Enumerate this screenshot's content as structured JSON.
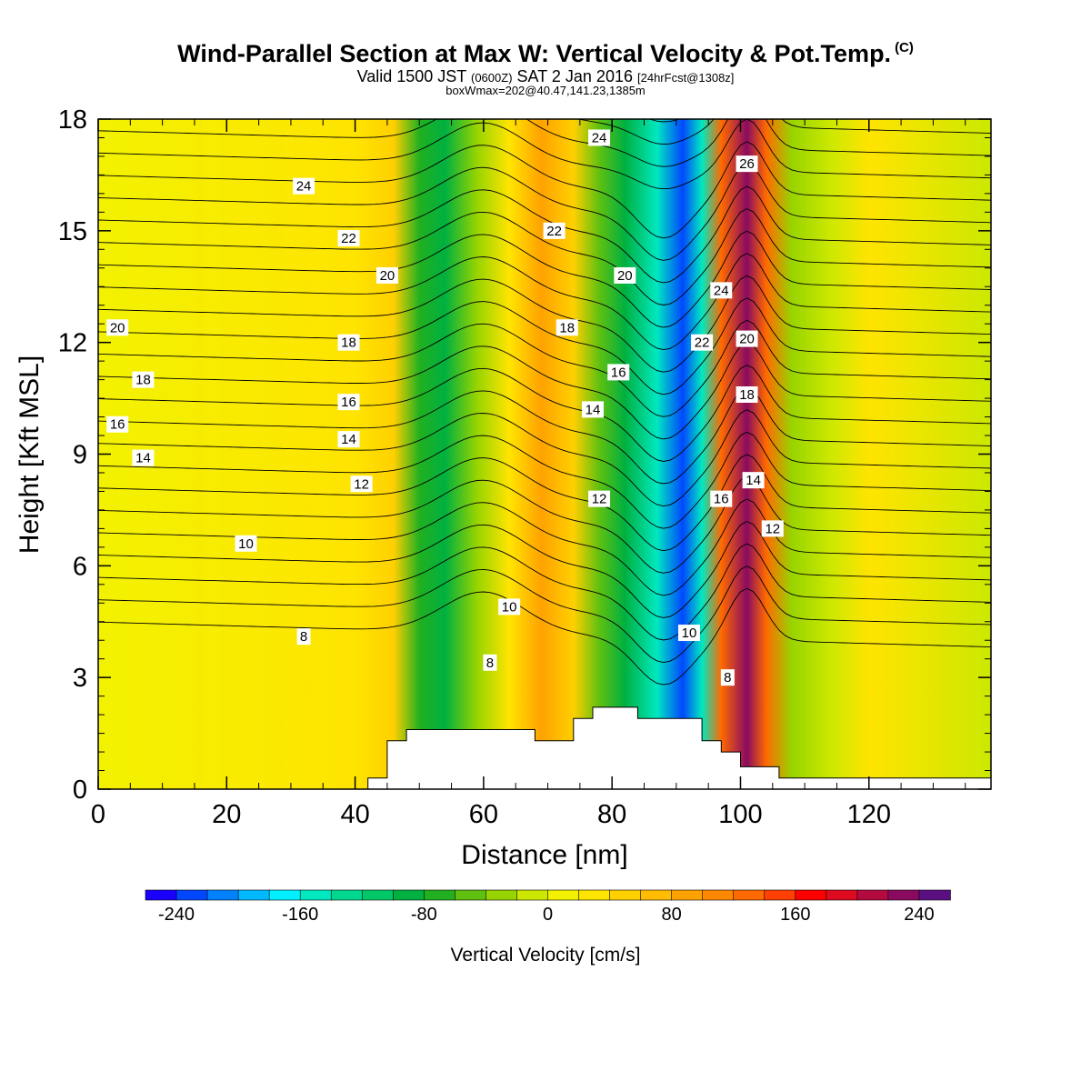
{
  "header": {
    "title": "Wind-Parallel Section at Max W: Vertical Velocity & Pot.Temp.",
    "title_mark": "(C)",
    "valid_prefix": "Valid 1500 JST",
    "valid_utc": "(0600Z)",
    "valid_date": "SAT 2 Jan 2016",
    "forecast": "[24hrFcst@1308z]",
    "box_info": "boxWmax=202@40.47,141.23,1385m"
  },
  "chart_data": {
    "type": "heatmap",
    "title": "Wind-Parallel Section at Max W: Vertical Velocity & Pot.Temp.",
    "xlabel": "Distance [nm]",
    "ylabel": "Height [Kft MSL]",
    "xlim": [
      0,
      139
    ],
    "ylim": [
      0,
      18
    ],
    "x_ticks": [
      0,
      20,
      40,
      60,
      80,
      100,
      120
    ],
    "y_ticks": [
      0,
      3,
      6,
      9,
      12,
      15,
      18
    ],
    "grid": false,
    "shaded_field": {
      "name": "Vertical Velocity [cm/s]",
      "levels": [
        -260,
        -240,
        -220,
        -200,
        -180,
        -160,
        -140,
        -120,
        -100,
        -80,
        -60,
        -40,
        -20,
        0,
        20,
        40,
        60,
        80,
        100,
        120,
        140,
        160,
        180,
        200,
        220,
        240,
        260
      ],
      "colors": [
        "#1a00ff",
        "#0047ff",
        "#0082ff",
        "#00b8ff",
        "#00f0ff",
        "#00e8c0",
        "#00d890",
        "#00c868",
        "#00b040",
        "#22b020",
        "#60c010",
        "#98d400",
        "#cce800",
        "#f2f200",
        "#ffe400",
        "#ffd000",
        "#ffbc00",
        "#ffa200",
        "#ff8800",
        "#ff6a00",
        "#ff4000",
        "#ff0000",
        "#dd0a20",
        "#b30a40",
        "#8a0a60",
        "#5a1080"
      ],
      "colorbar_tick_labels": [
        "-240",
        "-160",
        "-80",
        "0",
        "80",
        "160",
        "240"
      ],
      "colorbar_ticks": [
        -240,
        -160,
        -80,
        0,
        80,
        160,
        240
      ],
      "bands": [
        {
          "x": 0,
          "value": 0
        },
        {
          "x": 40,
          "value": 30
        },
        {
          "x": 46,
          "value": 40
        },
        {
          "x": 50,
          "value": -80
        },
        {
          "x": 54,
          "value": -100
        },
        {
          "x": 59,
          "value": -40
        },
        {
          "x": 64,
          "value": 20
        },
        {
          "x": 69,
          "value": 90
        },
        {
          "x": 74,
          "value": 40
        },
        {
          "x": 78,
          "value": -60
        },
        {
          "x": 82,
          "value": -90
        },
        {
          "x": 87,
          "value": -160
        },
        {
          "x": 91,
          "value": -240
        },
        {
          "x": 94,
          "value": -150
        },
        {
          "x": 97,
          "value": 130
        },
        {
          "x": 101,
          "value": 230
        },
        {
          "x": 104,
          "value": 130
        },
        {
          "x": 108,
          "value": -40
        },
        {
          "x": 114,
          "value": -20
        },
        {
          "x": 120,
          "value": 20
        },
        {
          "x": 139,
          "value": -10
        }
      ]
    },
    "contour_field": {
      "name": "Pot.Temp.",
      "units": "C",
      "levels": [
        8,
        10,
        12,
        14,
        16,
        18,
        20,
        22,
        24,
        26
      ],
      "labels": [
        {
          "text": "24",
          "x": 32,
          "y": 16.2
        },
        {
          "text": "22",
          "x": 39,
          "y": 14.8
        },
        {
          "text": "20",
          "x": 45,
          "y": 13.8
        },
        {
          "text": "20",
          "x": 3,
          "y": 12.4
        },
        {
          "text": "18",
          "x": 39,
          "y": 12.0
        },
        {
          "text": "18",
          "x": 7,
          "y": 11.0
        },
        {
          "text": "16",
          "x": 39,
          "y": 10.4
        },
        {
          "text": "16",
          "x": 3,
          "y": 9.8
        },
        {
          "text": "14",
          "x": 39,
          "y": 9.4
        },
        {
          "text": "14",
          "x": 7,
          "y": 8.9
        },
        {
          "text": "12",
          "x": 41,
          "y": 8.2
        },
        {
          "text": "10",
          "x": 23,
          "y": 6.6
        },
        {
          "text": "8",
          "x": 32,
          "y": 4.1
        },
        {
          "text": "24",
          "x": 78,
          "y": 17.5
        },
        {
          "text": "22",
          "x": 71,
          "y": 15.0
        },
        {
          "text": "20",
          "x": 82,
          "y": 13.8
        },
        {
          "text": "18",
          "x": 73,
          "y": 12.4
        },
        {
          "text": "16",
          "x": 81,
          "y": 11.2
        },
        {
          "text": "14",
          "x": 77,
          "y": 10.2
        },
        {
          "text": "12",
          "x": 78,
          "y": 7.8
        },
        {
          "text": "10",
          "x": 64,
          "y": 4.9
        },
        {
          "text": "8",
          "x": 61,
          "y": 3.4
        },
        {
          "text": "26",
          "x": 101,
          "y": 16.8
        },
        {
          "text": "24",
          "x": 97,
          "y": 13.4
        },
        {
          "text": "22",
          "x": 94,
          "y": 12.0
        },
        {
          "text": "20",
          "x": 101,
          "y": 12.1
        },
        {
          "text": "18",
          "x": 101,
          "y": 10.6
        },
        {
          "text": "16",
          "x": 97,
          "y": 7.8
        },
        {
          "text": "14",
          "x": 102,
          "y": 8.3
        },
        {
          "text": "12",
          "x": 105,
          "y": 7.0
        },
        {
          "text": "10",
          "x": 92,
          "y": 4.2
        },
        {
          "text": "8",
          "x": 98,
          "y": 3.0
        }
      ]
    },
    "terrain_profile": [
      [
        0,
        0
      ],
      [
        42,
        0
      ],
      [
        42,
        0.3
      ],
      [
        45,
        0.3
      ],
      [
        45,
        1.3
      ],
      [
        48,
        1.3
      ],
      [
        48,
        1.6
      ],
      [
        68,
        1.6
      ],
      [
        68,
        1.3
      ],
      [
        74,
        1.3
      ],
      [
        74,
        1.9
      ],
      [
        77,
        1.9
      ],
      [
        77,
        2.2
      ],
      [
        84,
        2.2
      ],
      [
        84,
        1.9
      ],
      [
        94,
        1.9
      ],
      [
        94,
        1.3
      ],
      [
        97,
        1.3
      ],
      [
        97,
        1.0
      ],
      [
        100,
        1.0
      ],
      [
        100,
        0.6
      ],
      [
        106,
        0.6
      ],
      [
        106,
        0.3
      ],
      [
        139,
        0.3
      ],
      [
        139,
        0
      ]
    ]
  }
}
